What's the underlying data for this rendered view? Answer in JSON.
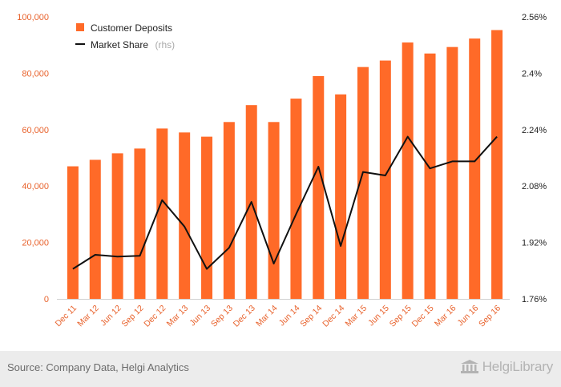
{
  "chart_data": {
    "type": "bar",
    "categories": [
      "Dec 11",
      "Mar 12",
      "Jun 12",
      "Sep 12",
      "Dec 12",
      "Mar 13",
      "Jun 13",
      "Sep 13",
      "Dec 13",
      "Mar 14",
      "Jun 14",
      "Sep 14",
      "Dec 14",
      "Mar 15",
      "Jun 15",
      "Sep 15",
      "Dec 15",
      "Mar 16",
      "Jun 16",
      "Sep 16"
    ],
    "series": [
      {
        "name": "Customer Deposits",
        "type": "bar",
        "axis": "left",
        "color": "#ff6a28",
        "values": [
          47000,
          49300,
          51600,
          53300,
          60400,
          59000,
          57500,
          62700,
          68700,
          62700,
          71000,
          79000,
          72500,
          82200,
          84500,
          90900,
          87000,
          89300,
          92300,
          95300
        ]
      },
      {
        "name": "Market Share",
        "suffix": "(rhs)",
        "type": "line",
        "axis": "right",
        "color": "#111111",
        "values": [
          1.845,
          1.885,
          1.88,
          1.882,
          2.04,
          1.965,
          1.845,
          1.905,
          2.035,
          1.86,
          2.0,
          2.135,
          1.91,
          2.12,
          2.11,
          2.22,
          2.13,
          2.15,
          2.15,
          2.22
        ]
      }
    ],
    "y_left": {
      "min": 0,
      "max": 100000,
      "ticks": [
        "0",
        "20,000",
        "40,000",
        "60,000",
        "80,000",
        "100,000"
      ]
    },
    "y_right": {
      "min": 1.76,
      "max": 2.56,
      "ticks": [
        "1.76%",
        "1.92%",
        "2.08%",
        "2.24%",
        "2.4%",
        "2.56%"
      ]
    },
    "legend_position": "top-left",
    "grid": false
  },
  "footer": {
    "source": "Source: Company Data, Helgi Analytics",
    "logo_text": "HelgiLibrary"
  }
}
